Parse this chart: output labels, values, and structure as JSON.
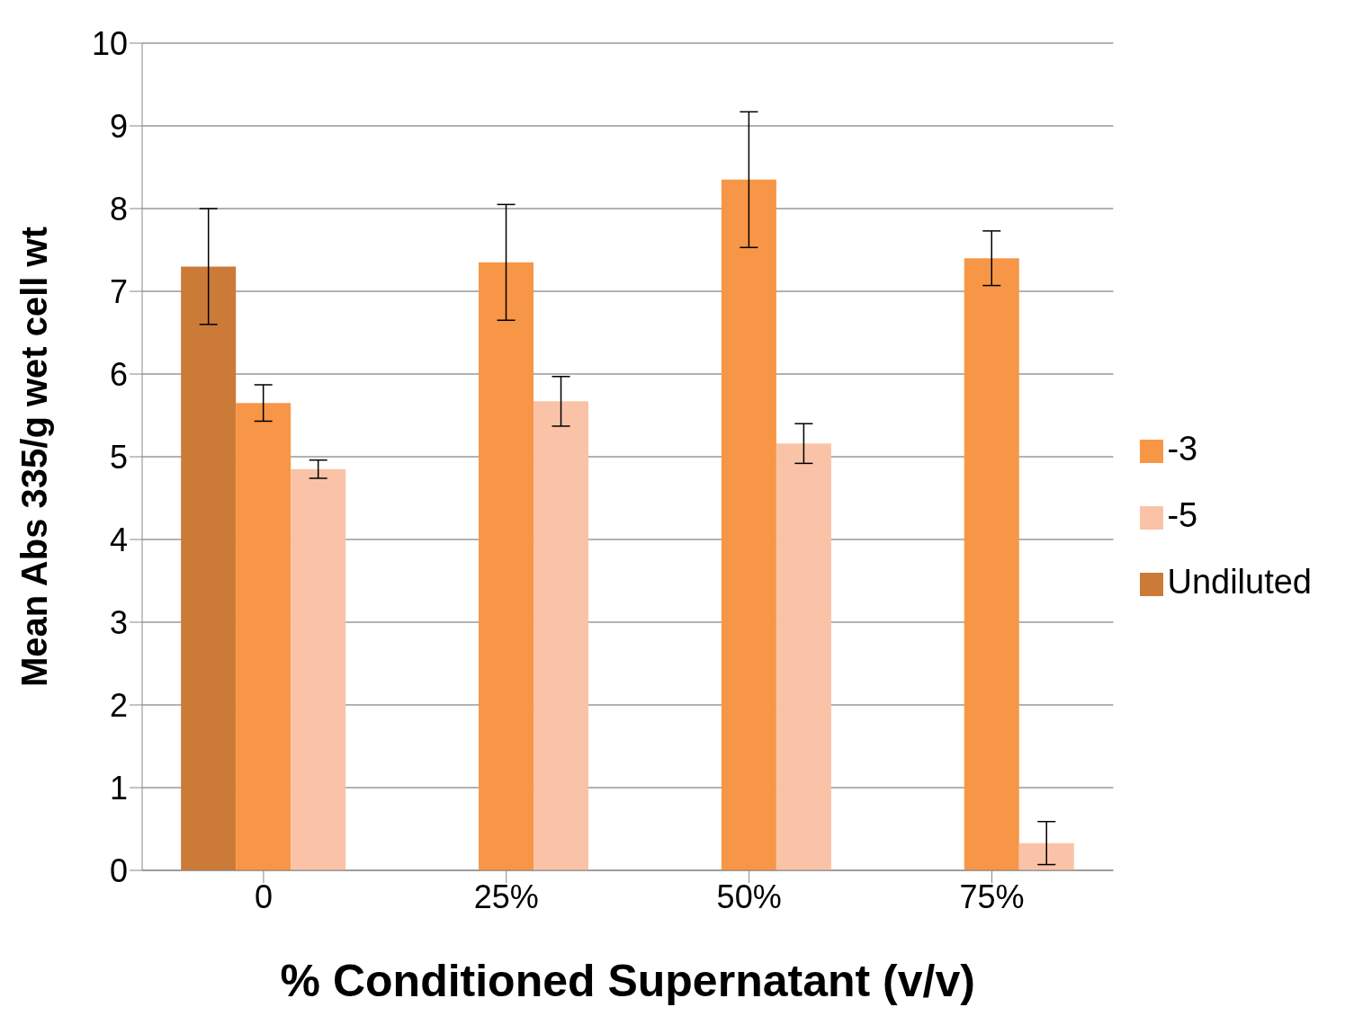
{
  "chart_data": {
    "type": "bar",
    "xlabel": "% Conditioned Supernatant (v/v)",
    "ylabel": "Mean Abs 335/g wet cell wt",
    "categories": [
      "0",
      "25%",
      "50%",
      "75%"
    ],
    "series": [
      {
        "name": "Undiluted",
        "color": "#cc7a38",
        "values": [
          7.3,
          null,
          null,
          null
        ],
        "errors": [
          0.7,
          null,
          null,
          null
        ]
      },
      {
        "name": "-3",
        "color": "#f79646",
        "values": [
          5.65,
          7.35,
          8.35,
          7.4
        ],
        "errors": [
          0.22,
          0.7,
          0.82,
          0.33
        ]
      },
      {
        "name": "-5",
        "color": "#fac3a8",
        "values": [
          4.85,
          5.67,
          5.16,
          0.33
        ],
        "errors": [
          0.11,
          0.3,
          0.24,
          0.26
        ]
      }
    ],
    "ylim": [
      0,
      10
    ],
    "yticks": [
      0,
      1,
      2,
      3,
      4,
      5,
      6,
      7,
      8,
      9,
      10
    ],
    "grid": "y",
    "legend": "right"
  }
}
